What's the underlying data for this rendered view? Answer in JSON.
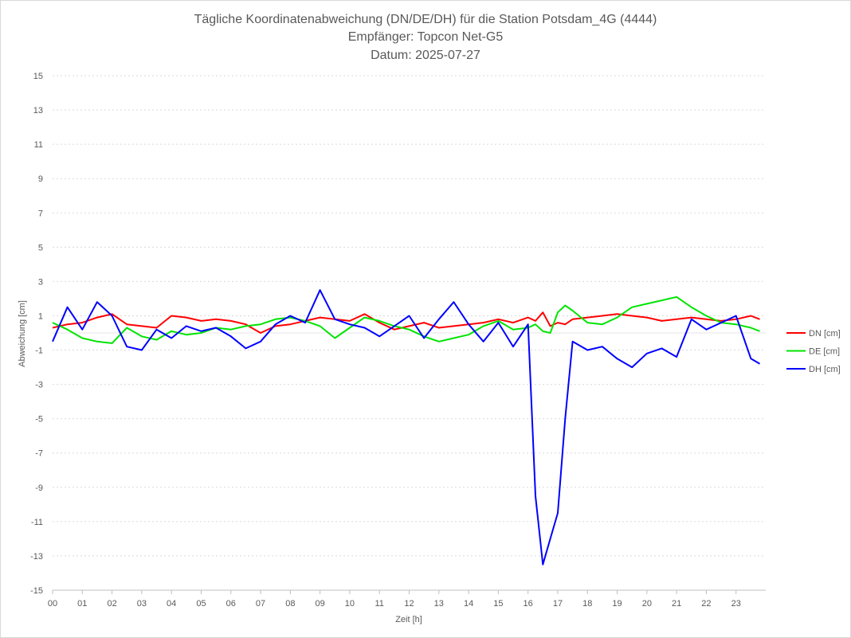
{
  "chart_data": {
    "type": "line",
    "title": [
      "Tägliche Koordinatenabweichung (DN/DE/DH) für die Station Potsdam_4G (4444)",
      "Empfänger: Topcon Net-G5",
      "Datum: 2025-07-27"
    ],
    "xlabel": "Zeit [h]",
    "ylabel": "Abweichung [cm]",
    "xlim": [
      0,
      24
    ],
    "ylim": [
      -15,
      15
    ],
    "x_ticks": [
      0,
      1,
      2,
      3,
      4,
      5,
      6,
      7,
      8,
      9,
      10,
      11,
      12,
      13,
      14,
      15,
      16,
      17,
      18,
      19,
      20,
      21,
      22,
      23
    ],
    "x_tick_labels": [
      "00",
      "01",
      "02",
      "03",
      "04",
      "05",
      "06",
      "07",
      "08",
      "09",
      "10",
      "11",
      "12",
      "13",
      "14",
      "15",
      "16",
      "17",
      "18",
      "19",
      "20",
      "21",
      "22",
      "23"
    ],
    "y_ticks": [
      15,
      13,
      11,
      9,
      7,
      5,
      3,
      1,
      -1,
      -3,
      -5,
      -7,
      -9,
      -11,
      -13,
      -15
    ],
    "y_tick_labels": [
      "15",
      "13",
      "11",
      "9",
      "7",
      "5",
      "3",
      "1",
      "-1",
      "-3",
      "-5",
      "-7",
      "-9",
      "-11",
      "-13",
      "-15"
    ],
    "grid": "horizontal-dotted",
    "legend_position": "right",
    "x": [
      0,
      0.5,
      1,
      1.5,
      2,
      2.5,
      3,
      3.5,
      4,
      4.5,
      5,
      5.5,
      6,
      6.5,
      7,
      7.5,
      8,
      8.5,
      9,
      9.5,
      10,
      10.5,
      11,
      11.5,
      12,
      12.5,
      13,
      13.5,
      14,
      14.5,
      15,
      15.5,
      16,
      16.25,
      16.5,
      16.75,
      17,
      17.25,
      17.5,
      18,
      18.5,
      19,
      19.5,
      20,
      20.5,
      21,
      21.5,
      22,
      22.5,
      23,
      23.5,
      23.8
    ],
    "series": [
      {
        "name": "DN [cm]",
        "color": "#ff0000",
        "values": [
          0.3,
          0.5,
          0.6,
          0.9,
          1.1,
          0.5,
          0.4,
          0.3,
          1.0,
          0.9,
          0.7,
          0.8,
          0.7,
          0.5,
          0.0,
          0.4,
          0.5,
          0.7,
          0.9,
          0.8,
          0.7,
          1.1,
          0.6,
          0.2,
          0.4,
          0.6,
          0.3,
          0.4,
          0.5,
          0.6,
          0.8,
          0.6,
          0.9,
          0.7,
          1.2,
          0.4,
          0.6,
          0.5,
          0.8,
          0.9,
          1.0,
          1.1,
          1.0,
          0.9,
          0.7,
          0.8,
          0.9,
          0.8,
          0.7,
          0.8,
          1.0,
          0.8
        ]
      },
      {
        "name": "DE [cm]",
        "color": "#00e400",
        "values": [
          0.6,
          0.2,
          -0.3,
          -0.5,
          -0.6,
          0.3,
          -0.2,
          -0.4,
          0.1,
          -0.1,
          0.0,
          0.3,
          0.2,
          0.4,
          0.5,
          0.8,
          0.9,
          0.7,
          0.4,
          -0.3,
          0.3,
          0.9,
          0.7,
          0.4,
          0.2,
          -0.2,
          -0.5,
          -0.3,
          -0.1,
          0.4,
          0.7,
          0.2,
          0.3,
          0.5,
          0.1,
          0.0,
          1.2,
          1.6,
          1.3,
          0.6,
          0.5,
          0.9,
          1.5,
          1.7,
          1.9,
          2.1,
          1.5,
          1.0,
          0.6,
          0.5,
          0.3,
          0.1
        ]
      },
      {
        "name": "DH [cm]",
        "color": "#0000ff",
        "values": [
          -0.5,
          1.5,
          0.2,
          1.8,
          1.0,
          -0.8,
          -1.0,
          0.2,
          -0.3,
          0.4,
          0.1,
          0.3,
          -0.2,
          -0.9,
          -0.5,
          0.5,
          1.0,
          0.6,
          2.5,
          0.8,
          0.5,
          0.3,
          -0.2,
          0.4,
          1.0,
          -0.3,
          0.8,
          1.8,
          0.5,
          -0.5,
          0.6,
          -0.8,
          0.5,
          -9.5,
          -13.5,
          -12.0,
          -10.5,
          -5.0,
          -0.5,
          -1.0,
          -0.8,
          -1.5,
          -2.0,
          -1.2,
          -0.9,
          -1.4,
          0.8,
          0.2,
          0.6,
          1.0,
          -1.5,
          -1.8
        ]
      }
    ]
  }
}
